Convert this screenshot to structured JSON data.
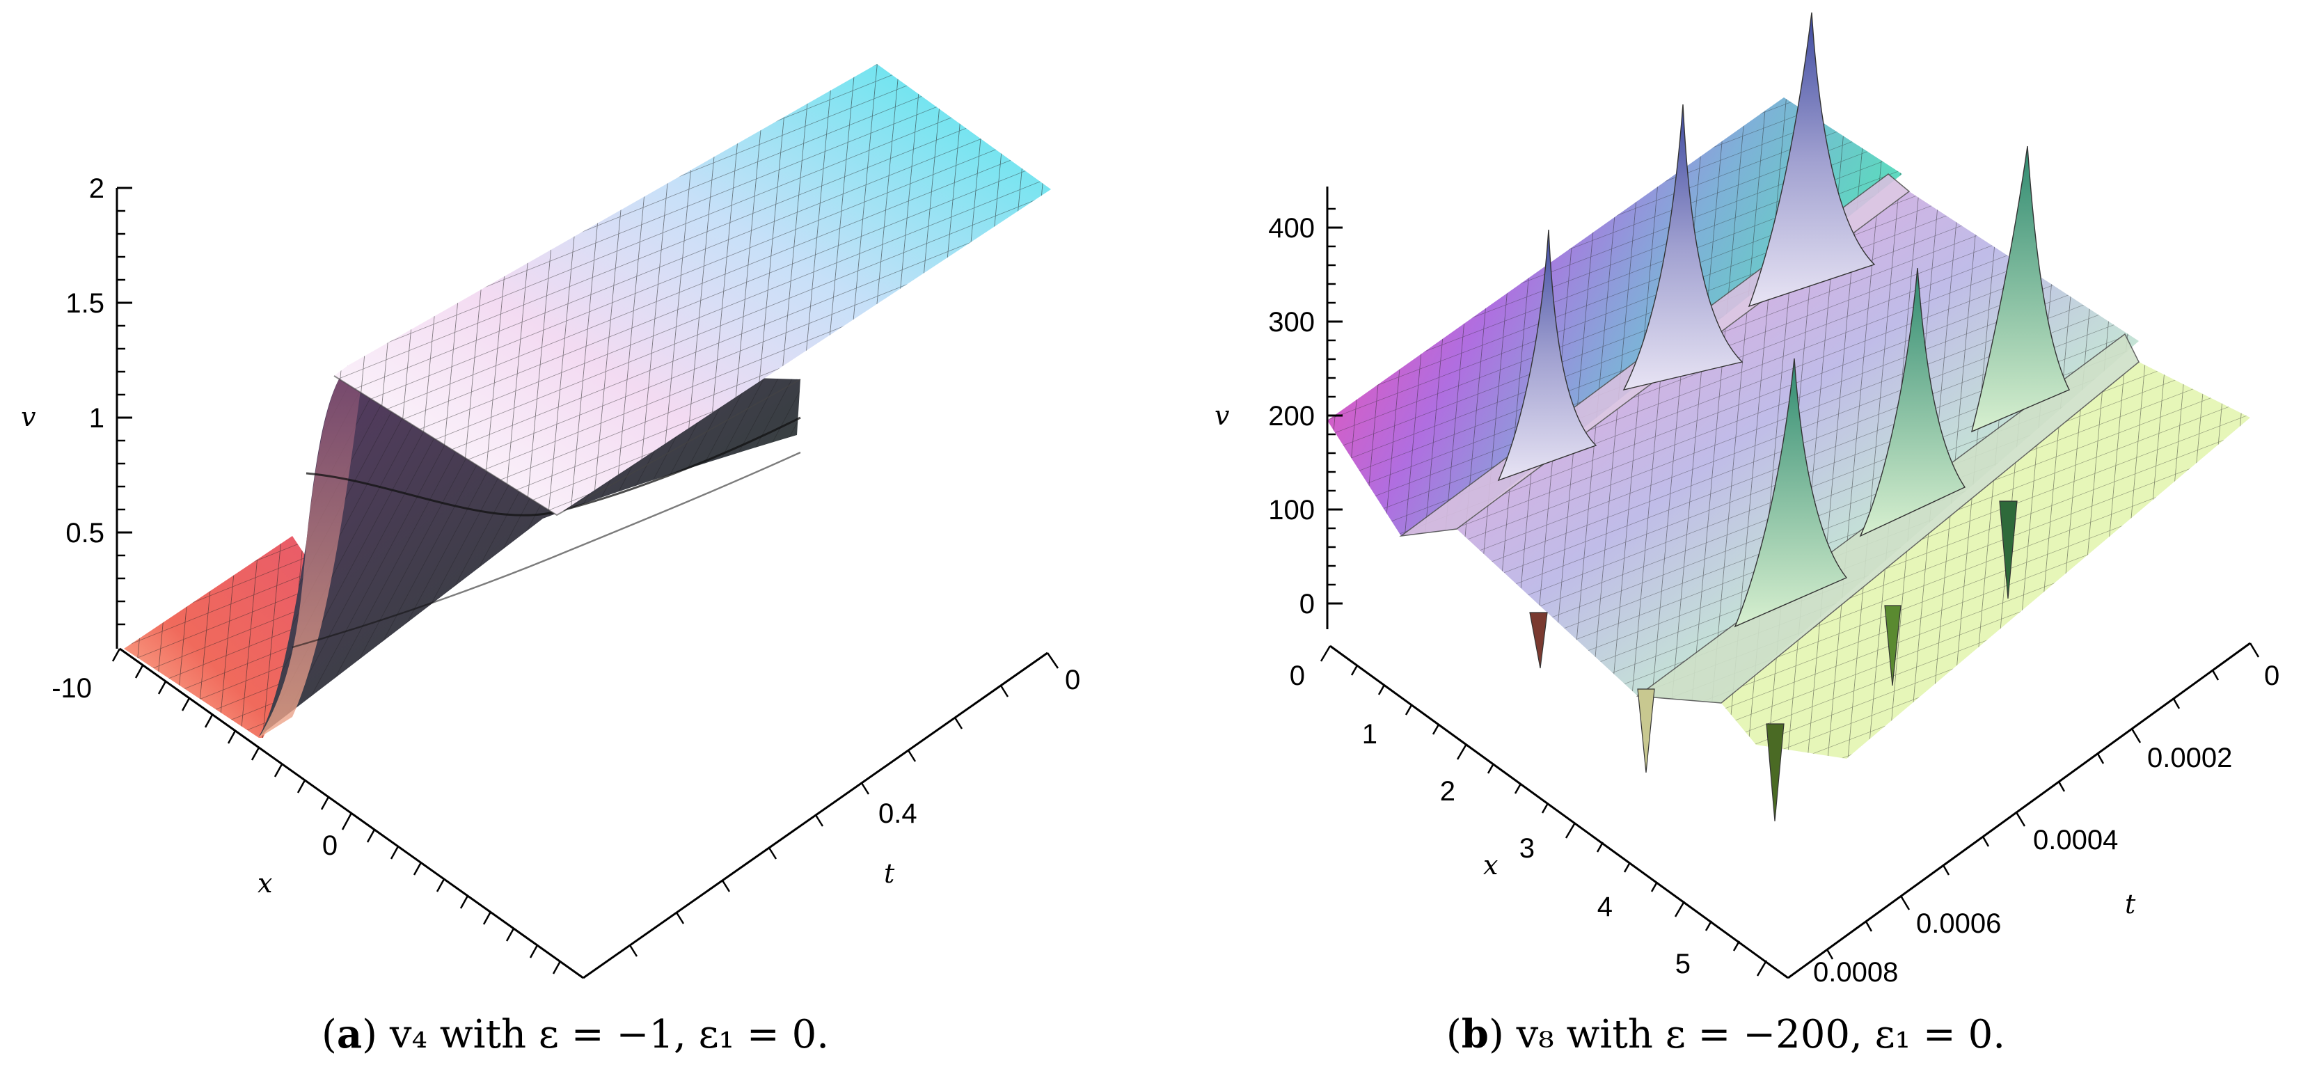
{
  "chart_data": [
    {
      "type": "surface",
      "panel": "a",
      "caption_tag": "a",
      "caption_text": "v₄ with ε = −1, ε₁ = 0.",
      "vlabel": "v",
      "xlabel": "x",
      "tlabel": "t",
      "v_ticks": [
        "2",
        "1.5",
        "1",
        "0.5"
      ],
      "x_ticks": [
        "-10",
        "0"
      ],
      "t_ticks": [
        "0",
        "0.4"
      ],
      "v_range": [
        0,
        2
      ],
      "x_range": [
        -10,
        10
      ],
      "t_range": [
        0,
        1
      ],
      "shape": "kink: v rises from 0 to about 2 as x increases, with a small dip/overshoot near the front; flat plateau along t",
      "colors": [
        "#f0605a",
        "#6a3f6e",
        "#f6f4fa",
        "#4bd9e0",
        "#3d5a35"
      ]
    },
    {
      "type": "surface",
      "panel": "b",
      "caption_tag": "b",
      "caption_text": "v₈ with ε = −200, ε₁ = 0.",
      "vlabel": "v",
      "xlabel": "x",
      "tlabel": "t",
      "v_ticks": [
        "400",
        "300",
        "200",
        "100",
        "0"
      ],
      "x_ticks": [
        "0",
        "1",
        "2",
        "3",
        "4",
        "5"
      ],
      "t_ticks": [
        "0",
        "0.0002",
        "0.0004",
        "0.0006",
        "0.0008"
      ],
      "v_range": [
        0,
        400
      ],
      "x_range": [
        0,
        5.5
      ],
      "t_range": [
        0,
        0.001
      ],
      "shape": "periodic in x: flat plane near v = 200 with sharp spikes (up to above 400) and drops at three x-positions",
      "colors": [
        "#f54fb0",
        "#9b6fd8",
        "#5fb8c8",
        "#f4f0a0",
        "#59f0c0",
        "#7a9a3a"
      ]
    }
  ]
}
